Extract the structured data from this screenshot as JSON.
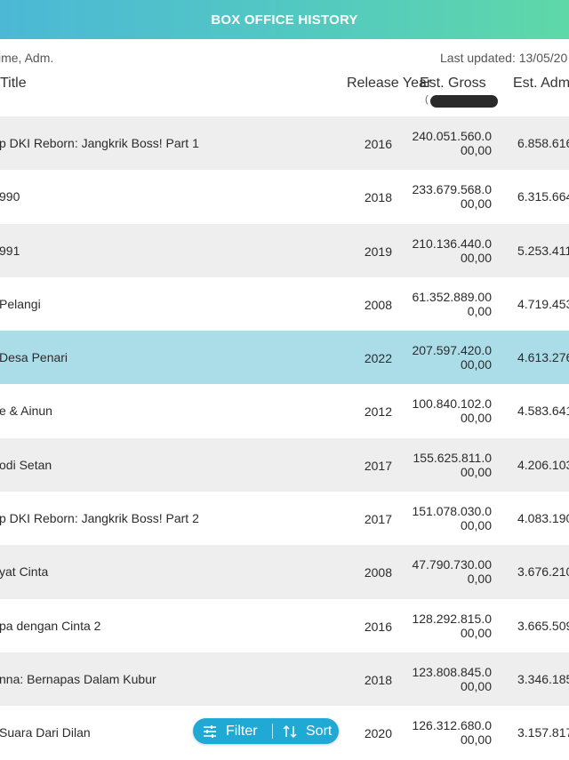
{
  "header": {
    "title": "BOX OFFICE HISTORY"
  },
  "meta": {
    "left_text": "ime, Adm.",
    "updated_text": "Last updated: 13/05/20"
  },
  "columns": {
    "title": "Title",
    "release_year": "Release Year",
    "est_gross": "Est. Gross",
    "est_gross_sub": "(",
    "est_adm": "Est. Adm"
  },
  "rows": [
    {
      "title": "p DKI Reborn: Jangkrik Boss! Part 1",
      "year": "2016",
      "gross": "240.051.560.000,00",
      "adm": "6.858.616"
    },
    {
      "title": "990",
      "year": "2018",
      "gross": "233.679.568.000,00",
      "adm": "6.315.664"
    },
    {
      "title": "991",
      "year": "2019",
      "gross": "210.136.440.000,00",
      "adm": "5.253.411"
    },
    {
      "title": "Pelangi",
      "year": "2008",
      "gross": "61.352.889.000,00",
      "adm": "4.719.453"
    },
    {
      "title": "Desa Penari",
      "year": "2022",
      "gross": "207.597.420.000,00",
      "adm": "4.613.276"
    },
    {
      "title": "e & Ainun",
      "year": "2012",
      "gross": "100.840.102.000,00",
      "adm": "4.583.641"
    },
    {
      "title": "odi Setan",
      "year": "2017",
      "gross": "155.625.811.000,00",
      "adm": "4.206.103"
    },
    {
      "title": "p DKI Reborn: Jangkrik Boss! Part 2",
      "year": "2017",
      "gross": "151.078.030.000,00",
      "adm": "4.083.190"
    },
    {
      "title": "yat Cinta",
      "year": "2008",
      "gross": "47.790.730.000,00",
      "adm": "3.676.210"
    },
    {
      "title": "pa dengan Cinta 2",
      "year": "2016",
      "gross": "128.292.815.000,00",
      "adm": "3.665.509"
    },
    {
      "title": "nna: Bernapas Dalam Kubur",
      "year": "2018",
      "gross": "123.808.845.000,00",
      "adm": "3.346.185"
    },
    {
      "title": "Suara Dari Dilan",
      "year": "2020",
      "gross": "126.312.680.000,00",
      "adm": "3.157.817"
    }
  ],
  "selected_row": 4,
  "fab": {
    "filter_label": "Filter",
    "sort_label": "Sort",
    "filter_icon": "sliders-icon",
    "sort_icon": "sort-arrows-icon"
  },
  "colors": {
    "header_start": "#4cb8d6",
    "header_end": "#5fd8a8",
    "row_alt": "#eeeeee",
    "row_selected": "#abdde9",
    "fab": "#21a9d6"
  }
}
